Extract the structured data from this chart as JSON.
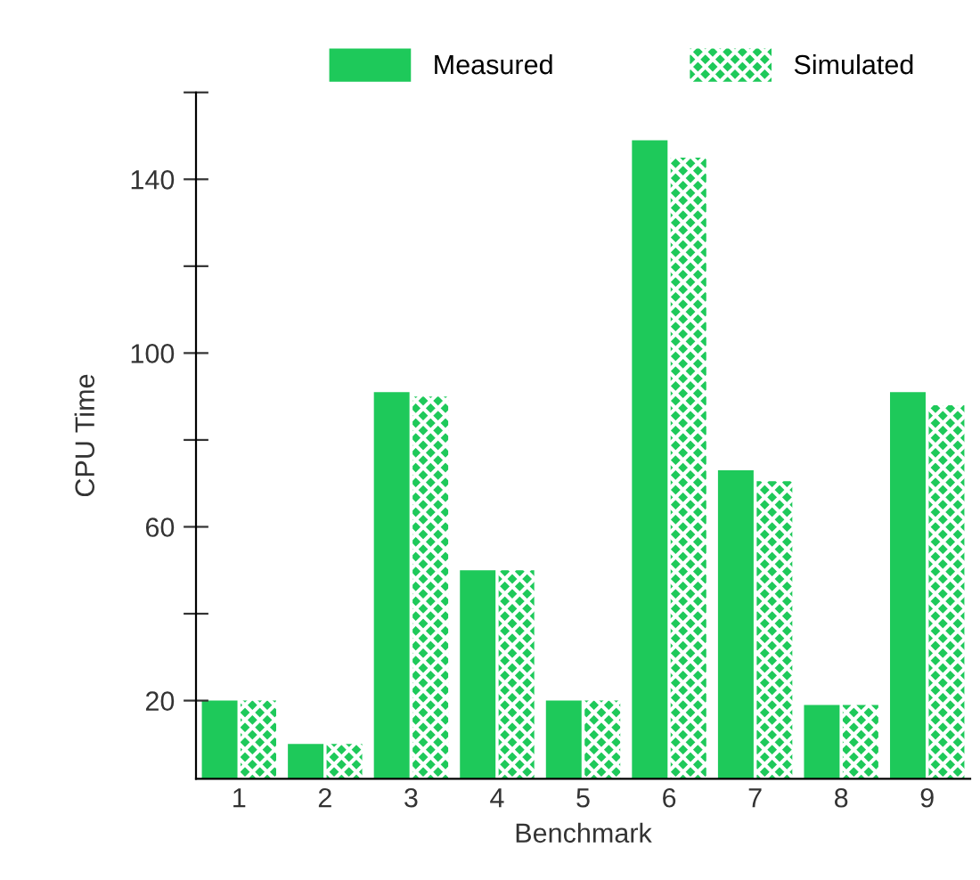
{
  "chart_data": {
    "type": "bar",
    "xlabel": "Benchmark",
    "ylabel": "CPU Time",
    "categories": [
      "1",
      "2",
      "3",
      "4",
      "5",
      "6",
      "7",
      "8",
      "9"
    ],
    "series": [
      {
        "name": "Measured",
        "color": "#1ec95a",
        "values": [
          20,
          10,
          91,
          50,
          20,
          149,
          73,
          19,
          91
        ]
      },
      {
        "name": "Simulated",
        "color": "#1ec95a",
        "values": [
          20,
          10,
          90,
          50,
          20,
          145,
          70.5,
          19,
          88
        ]
      }
    ],
    "ylim": [
      2,
      160
    ],
    "yticks": [
      20,
      {
        "value": 40,
        "label": null
      },
      60,
      {
        "value": 80,
        "label": null
      },
      100,
      {
        "value": 120,
        "label": null
      },
      140,
      {
        "value": 160,
        "label": null
      }
    ],
    "grid": false,
    "legend": "top"
  }
}
